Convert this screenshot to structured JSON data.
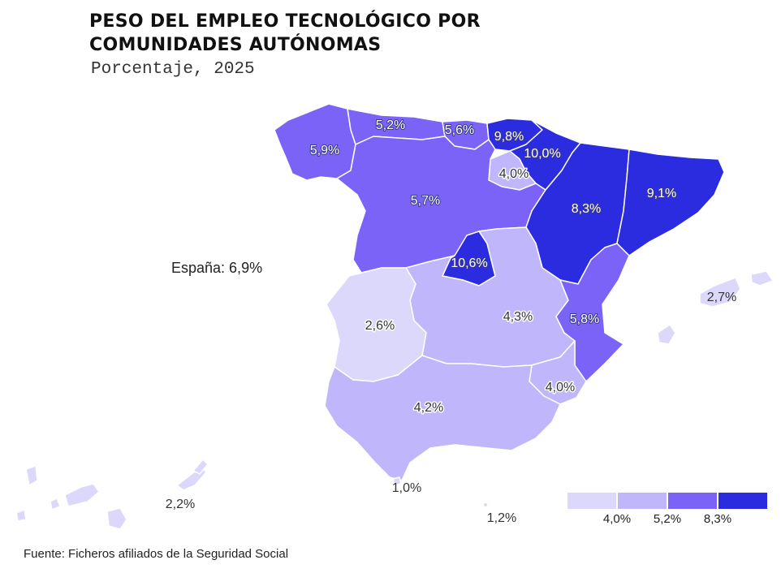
{
  "title": {
    "line1": "PESO DEL EMPLEO TECNOLÓGICO POR",
    "line2": "COMUNIDADES AUTÓNOMAS"
  },
  "subtitle": "Porcentaje, 2025",
  "national_label": "España: 6,9%",
  "source": "Fuente: Ficheros afiliados de la Seguridad Social",
  "colors": {
    "bin1": "#dcd8fb",
    "bin2": "#bfb6fb",
    "bin3": "#7b63f8",
    "bin4": "#2b2be0",
    "border": "#ffffff"
  },
  "regions": [
    {
      "id": "galicia",
      "name": "Galicia",
      "value": 5.9,
      "label": "5,9%"
    },
    {
      "id": "asturias",
      "name": "Asturias",
      "value": 5.2,
      "label": "5,2%"
    },
    {
      "id": "cantabria",
      "name": "Cantabria",
      "value": 5.6,
      "label": "5,6%"
    },
    {
      "id": "pais-vasco",
      "name": "País Vasco",
      "value": 9.8,
      "label": "9,8%"
    },
    {
      "id": "navarra",
      "name": "Navarra",
      "value": 10.0,
      "label": "10,0%"
    },
    {
      "id": "la-rioja",
      "name": "La Rioja",
      "value": 4.0,
      "label": "4,0%"
    },
    {
      "id": "castilla-leon",
      "name": "Castilla y León",
      "value": 5.7,
      "label": "5,7%"
    },
    {
      "id": "aragon",
      "name": "Aragón",
      "value": 8.3,
      "label": "8,3%"
    },
    {
      "id": "cataluna",
      "name": "Cataluña",
      "value": 9.1,
      "label": "9,1%"
    },
    {
      "id": "madrid",
      "name": "Madrid",
      "value": 10.6,
      "label": "10,6%"
    },
    {
      "id": "castilla-la-mancha",
      "name": "Castilla-La Mancha",
      "value": 4.3,
      "label": "4,3%"
    },
    {
      "id": "extremadura",
      "name": "Extremadura",
      "value": 2.6,
      "label": "2,6%"
    },
    {
      "id": "valencia",
      "name": "Comunidad Valenciana",
      "value": 5.8,
      "label": "5,8%"
    },
    {
      "id": "murcia",
      "name": "Murcia",
      "value": 4.0,
      "label": "4,0%"
    },
    {
      "id": "andalucia",
      "name": "Andalucía",
      "value": 4.2,
      "label": "4,2%"
    },
    {
      "id": "baleares",
      "name": "Baleares",
      "value": 2.7,
      "label": "2,7%"
    },
    {
      "id": "canarias",
      "name": "Canarias",
      "value": 2.2,
      "label": "2,2%"
    },
    {
      "id": "ceuta",
      "name": "Ceuta",
      "value": 1.0,
      "label": "1,0%"
    },
    {
      "id": "melilla",
      "name": "Melilla",
      "value": 1.2,
      "label": "1,2%"
    }
  ],
  "legend": {
    "breaks": [
      "4,0%",
      "5,2%",
      "8,3%"
    ]
  }
}
